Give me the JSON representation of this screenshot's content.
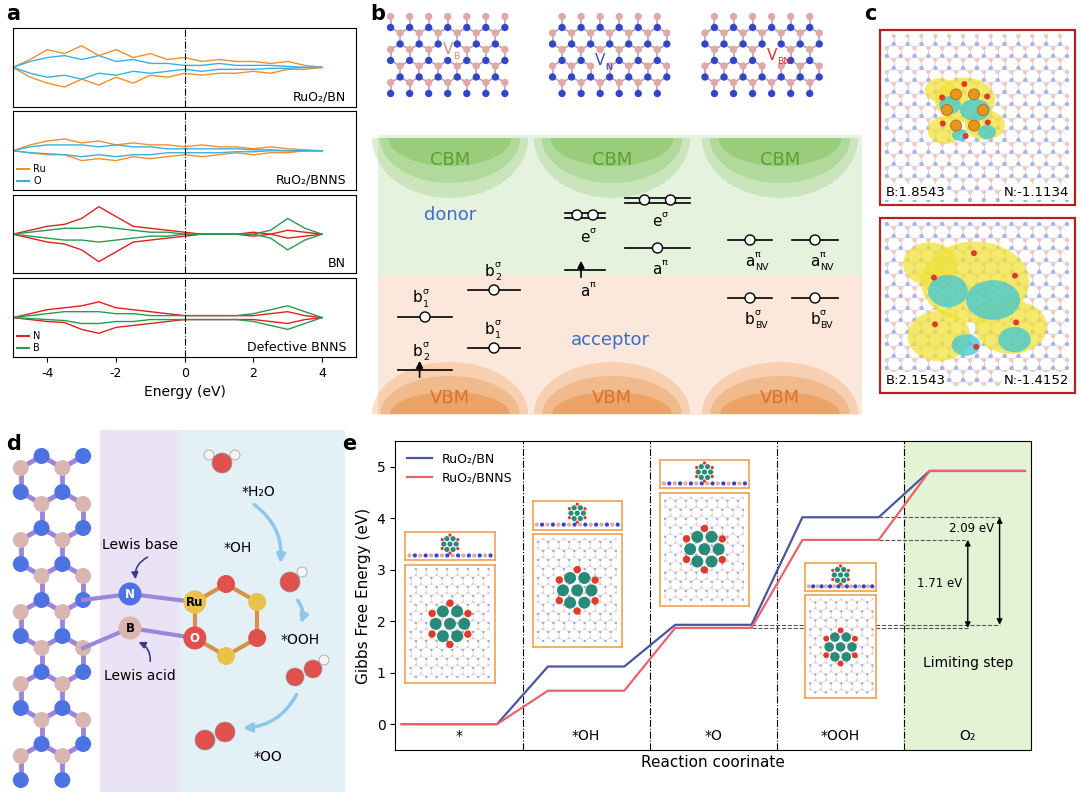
{
  "panel_labels": [
    "a",
    "b",
    "c",
    "d",
    "e"
  ],
  "chart_data": [
    {
      "type": "line",
      "title": "RuO₂/BN",
      "x": [
        -5,
        -4.5,
        -4,
        -3.5,
        -3,
        -2.5,
        -2,
        -1.5,
        -1,
        -0.5,
        0,
        0.5,
        1,
        1.5,
        2,
        2.5,
        3,
        3.5,
        4
      ],
      "series": [
        {
          "name": "Ru",
          "color": "#f0902a",
          "values": [
            0.0,
            0.4,
            0.9,
            0.7,
            1.1,
            0.6,
            0.9,
            0.5,
            0.7,
            0.4,
            0.5,
            0.3,
            0.4,
            0.3,
            0.3,
            0.2,
            0.3,
            0.1,
            0.0
          ],
          "values_down": [
            0.0,
            -0.5,
            -0.8,
            -1.0,
            -0.6,
            -0.9,
            -0.5,
            -0.8,
            -0.4,
            -0.5,
            -0.3,
            -0.4,
            -0.3,
            -0.3,
            -0.2,
            -0.3,
            -0.1,
            -0.1,
            0.0
          ]
        },
        {
          "name": "O",
          "color": "#3ab0e0",
          "values": [
            0.0,
            0.3,
            0.5,
            0.6,
            0.4,
            0.6,
            0.3,
            0.4,
            0.2,
            0.2,
            0.1,
            0.1,
            0.2,
            0.1,
            0.1,
            0.1,
            0.05,
            0.0,
            0.0
          ],
          "values_down": [
            0.0,
            -0.3,
            -0.5,
            -0.4,
            -0.6,
            -0.3,
            -0.4,
            -0.2,
            -0.3,
            -0.2,
            -0.1,
            -0.2,
            -0.1,
            -0.1,
            -0.1,
            -0.05,
            -0.05,
            0.0,
            0.0
          ]
        }
      ],
      "xlim": [
        -5,
        5
      ],
      "xticks": [
        -4,
        -2,
        0,
        2,
        4
      ],
      "ylim": [
        -2,
        2
      ],
      "tick_labels": false
    },
    {
      "type": "line",
      "title": "RuO₂/BNNS",
      "x": [
        -5,
        -4.5,
        -4,
        -3.5,
        -3,
        -2.5,
        -2,
        -1.5,
        -1,
        -0.5,
        0,
        0.5,
        1,
        1.5,
        2,
        2.5,
        3,
        3.5,
        4
      ],
      "series": [
        {
          "name": "Ru",
          "color": "#f0902a",
          "values": [
            0.0,
            0.3,
            0.5,
            0.6,
            0.4,
            0.5,
            0.3,
            0.4,
            0.3,
            0.3,
            0.2,
            0.3,
            0.2,
            0.2,
            0.1,
            0.2,
            0.1,
            0.05,
            0.0
          ],
          "values_down": [
            0.0,
            -0.1,
            -0.2,
            -0.2,
            -0.5,
            -0.4,
            -0.5,
            -0.3,
            -0.4,
            -0.3,
            -0.2,
            -0.3,
            -0.2,
            -0.1,
            -0.2,
            -0.1,
            -0.1,
            0.0,
            0.0
          ]
        },
        {
          "name": "O",
          "color": "#3ab0e0",
          "values": [
            0.0,
            0.2,
            0.3,
            0.3,
            0.3,
            0.2,
            0.3,
            0.2,
            0.2,
            0.1,
            0.1,
            0.1,
            0.1,
            0.1,
            0.05,
            0.05,
            0.0,
            0.0,
            0.0
          ],
          "values_down": [
            0.0,
            -0.1,
            -0.15,
            -0.2,
            -0.3,
            -0.2,
            -0.3,
            -0.2,
            -0.2,
            -0.1,
            -0.1,
            -0.1,
            -0.1,
            -0.05,
            -0.05,
            0.0,
            0.0,
            0.0,
            0.0
          ]
        }
      ],
      "xlim": [
        -5,
        5
      ],
      "xticks": [
        -4,
        -2,
        0,
        2,
        4
      ],
      "ylim": [
        -2,
        2
      ],
      "tick_labels": false,
      "legend": "lower left"
    },
    {
      "type": "line",
      "title": "BN",
      "x": [
        -5,
        -4.5,
        -4,
        -3.5,
        -3,
        -2.5,
        -2,
        -1.5,
        -1,
        -0.5,
        0,
        0.5,
        1,
        1.5,
        2,
        2.5,
        3,
        3.5,
        4
      ],
      "series": [
        {
          "name": "N",
          "color": "#e02020",
          "values": [
            0.0,
            0.2,
            0.4,
            0.5,
            0.8,
            1.4,
            0.9,
            0.4,
            0.3,
            0.2,
            0.1,
            0.0,
            0.0,
            0.0,
            0.1,
            0.0,
            0.2,
            0.1,
            0.0
          ],
          "values_down": [
            0.0,
            -0.2,
            -0.4,
            -0.5,
            -0.8,
            -1.4,
            -0.9,
            -0.4,
            -0.3,
            -0.2,
            -0.1,
            0.0,
            0.0,
            0.0,
            -0.1,
            0.0,
            -0.2,
            -0.1,
            0.0
          ]
        },
        {
          "name": "B",
          "color": "#2a9a50",
          "values": [
            0.0,
            0.1,
            0.2,
            0.3,
            0.3,
            0.4,
            0.3,
            0.2,
            0.1,
            0.1,
            0.0,
            0.0,
            0.0,
            0.0,
            0.0,
            0.2,
            0.8,
            0.3,
            0.0
          ],
          "values_down": [
            0.0,
            -0.1,
            -0.2,
            -0.3,
            -0.3,
            -0.4,
            -0.3,
            -0.2,
            -0.1,
            -0.1,
            0.0,
            0.0,
            0.0,
            0.0,
            0.0,
            -0.2,
            -0.8,
            -0.3,
            0.0
          ]
        }
      ],
      "xlim": [
        -5,
        5
      ],
      "xticks": [
        -4,
        -2,
        0,
        2,
        4
      ],
      "ylim": [
        -2,
        2
      ],
      "tick_labels": false
    },
    {
      "type": "line",
      "title": "Defective BNNS",
      "xlabel": "Energy (eV)",
      "x": [
        -5,
        -4.5,
        -4,
        -3.5,
        -3,
        -2.5,
        -2,
        -1.5,
        -1,
        -0.5,
        0,
        0.5,
        1,
        1.5,
        2,
        2.5,
        3,
        3.5,
        4
      ],
      "series": [
        {
          "name": "N",
          "color": "#e02020",
          "values": [
            0.0,
            0.2,
            0.4,
            0.5,
            0.6,
            0.8,
            0.5,
            0.4,
            0.3,
            0.2,
            0.1,
            0.1,
            0.1,
            0.1,
            0.1,
            0.2,
            0.3,
            0.1,
            0.0
          ],
          "values_down": [
            0.0,
            -0.1,
            -0.2,
            -0.25,
            -0.6,
            -0.8,
            -0.5,
            -0.4,
            -0.3,
            -0.2,
            -0.1,
            -0.1,
            -0.1,
            -0.1,
            -0.1,
            -0.2,
            -0.3,
            -0.1,
            0.0
          ]
        },
        {
          "name": "B",
          "color": "#2a9a50",
          "values": [
            0.0,
            0.1,
            0.2,
            0.3,
            0.3,
            0.3,
            0.2,
            0.2,
            0.1,
            0.1,
            0.1,
            0.1,
            0.1,
            0.1,
            0.2,
            0.4,
            0.6,
            0.3,
            0.0
          ],
          "values_down": [
            0.0,
            -0.05,
            -0.1,
            -0.15,
            -0.3,
            -0.3,
            -0.2,
            -0.2,
            -0.1,
            -0.1,
            -0.1,
            -0.1,
            -0.1,
            -0.1,
            -0.2,
            -0.4,
            -0.6,
            -0.3,
            0.0
          ]
        }
      ],
      "xlim": [
        -5,
        5
      ],
      "xticks": [
        -4,
        -2,
        0,
        2,
        4
      ],
      "ylim": [
        -2,
        2
      ],
      "tick_labels": "x",
      "legend": "lower left"
    },
    {
      "type": "step",
      "ylabel": "Gibbs Free Energy (eV)",
      "xlabel": "Reaction coorinate",
      "categories": [
        "*",
        "*OH",
        "*O",
        "*OOH",
        "O₂"
      ],
      "series": [
        {
          "name": "RuO₂/BN",
          "color": "#4b559e",
          "values": [
            0,
            1.12,
            1.93,
            4.02,
            4.92
          ]
        },
        {
          "name": "RuO₂/BNNS",
          "color": "#e8646a",
          "values": [
            0,
            0.65,
            1.87,
            3.58,
            4.92
          ]
        }
      ],
      "ylim": [
        -0.5,
        5.5
      ],
      "yticks": [
        0,
        1,
        2,
        3,
        4,
        5
      ],
      "legend": "upper left",
      "annotations": [
        {
          "text": "2.09 eV",
          "series": "RuO₂/BN",
          "from": "*O",
          "value": 2.09
        },
        {
          "text": "1.71 eV",
          "series": "RuO₂/BNNS",
          "from": "*O",
          "value": 1.71
        },
        {
          "text": "Limiting step",
          "category": "O₂"
        }
      ]
    }
  ],
  "panel_b": {
    "donor": "donor",
    "acceptor": "acceptor",
    "columns": [
      {
        "defect": {
          "base": "V",
          "sub": "B",
          "color": "#d48a8a"
        },
        "band_top": "CBM",
        "band_bottom": "VBM",
        "levels": [
          {
            "base": "b",
            "sub": "1",
            "sup": "σ"
          },
          {
            "base": "b",
            "sub": "2",
            "sup": "σ"
          },
          {
            "base": "b",
            "sub": "1",
            "sup": "σ"
          },
          {
            "base": "b",
            "sub": "2",
            "sup": "σ"
          }
        ]
      },
      {
        "defect": {
          "base": "V",
          "sub": "N",
          "color": "#3a4fc0"
        },
        "band_top": "CBM",
        "band_bottom": "VBM",
        "levels": [
          {
            "base": "e",
            "sup": "σ"
          },
          {
            "base": "e",
            "sup": "σ"
          },
          {
            "base": "a",
            "sup": "π"
          },
          {
            "base": "a",
            "sup": "π"
          }
        ]
      },
      {
        "defect": {
          "base": "V",
          "sub": "BN",
          "color": "#e03030"
        },
        "band_top": "CBM",
        "band_bottom": "VBM",
        "levels": [
          {
            "base": "a",
            "sub": "NV",
            "sup": "π"
          },
          {
            "base": "a",
            "sub": "NV",
            "sup": "π"
          },
          {
            "base": "b",
            "sub": "BV",
            "sup": "σ"
          },
          {
            "base": "b",
            "sub": "BV",
            "sup": "σ"
          }
        ]
      }
    ]
  },
  "panel_c": {
    "charges": [
      {
        "B": 1.8543,
        "N": -1.1134
      },
      {
        "B": 2.1543,
        "N": -1.4152
      }
    ]
  },
  "panel_d": {
    "lewis_base": "Lewis base",
    "lewis_acid": "Lewis acid",
    "atom_labels": [
      "N",
      "B",
      "Ru",
      "O"
    ],
    "steps": [
      "*H₂O",
      "*OH",
      "*OOH",
      "*OO"
    ]
  }
}
